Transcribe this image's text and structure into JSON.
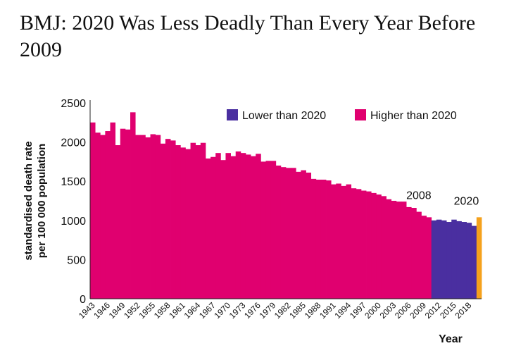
{
  "title": "BMJ: 2020 Was Less Deadly Than Every Year Before 2009",
  "chart_data": {
    "type": "bar",
    "ylabel": "standardised death rate per 100 000 population",
    "xlabel": "Year",
    "ylim": [
      0,
      2500
    ],
    "yticks": [
      0,
      500,
      1000,
      1500,
      2000,
      2500
    ],
    "xtick_labels": [
      "1943",
      "1946",
      "1949",
      "1952",
      "1955",
      "1958",
      "1961",
      "1964",
      "1967",
      "1970",
      "1973",
      "1976",
      "1979",
      "1982",
      "1985",
      "1988",
      "1991",
      "1994",
      "1997",
      "2000",
      "2003",
      "2006",
      "2009",
      "2012",
      "2015",
      "2018"
    ],
    "legend": [
      {
        "label": "Lower than 2020",
        "color": "#4a2fa0"
      },
      {
        "label": "Higher than 2020",
        "color": "#e0006f"
      }
    ],
    "highlight_color": "#f5a11c",
    "annotations": [
      {
        "text": "2008",
        "year": 2008
      },
      {
        "text": "2020",
        "year": 2020
      }
    ],
    "legend_position": "top-right",
    "years": [
      1943,
      1944,
      1945,
      1946,
      1947,
      1948,
      1949,
      1950,
      1951,
      1952,
      1953,
      1954,
      1955,
      1956,
      1957,
      1958,
      1959,
      1960,
      1961,
      1962,
      1963,
      1964,
      1965,
      1966,
      1967,
      1968,
      1969,
      1970,
      1971,
      1972,
      1973,
      1974,
      1975,
      1976,
      1977,
      1978,
      1979,
      1980,
      1981,
      1982,
      1983,
      1984,
      1985,
      1986,
      1987,
      1988,
      1989,
      1990,
      1991,
      1992,
      1993,
      1994,
      1995,
      1996,
      1997,
      1998,
      1999,
      2000,
      2001,
      2002,
      2003,
      2004,
      2005,
      2006,
      2007,
      2008,
      2009,
      2010,
      2011,
      2012,
      2013,
      2014,
      2015,
      2016,
      2017,
      2018,
      2019,
      2020
    ],
    "values": [
      2250,
      2120,
      2090,
      2140,
      2250,
      1960,
      2170,
      2160,
      2380,
      2090,
      2090,
      2060,
      2100,
      2090,
      1980,
      2040,
      2020,
      1960,
      1930,
      1910,
      1990,
      1960,
      1990,
      1790,
      1810,
      1860,
      1770,
      1860,
      1820,
      1880,
      1860,
      1840,
      1820,
      1850,
      1750,
      1760,
      1760,
      1700,
      1680,
      1670,
      1670,
      1620,
      1640,
      1610,
      1530,
      1520,
      1520,
      1510,
      1460,
      1470,
      1440,
      1460,
      1410,
      1400,
      1380,
      1370,
      1350,
      1330,
      1310,
      1270,
      1250,
      1240,
      1240,
      1170,
      1160,
      1110,
      1060,
      1040,
      1000,
      1010,
      1000,
      980,
      1010,
      990,
      980,
      970,
      930,
      1040
    ]
  }
}
